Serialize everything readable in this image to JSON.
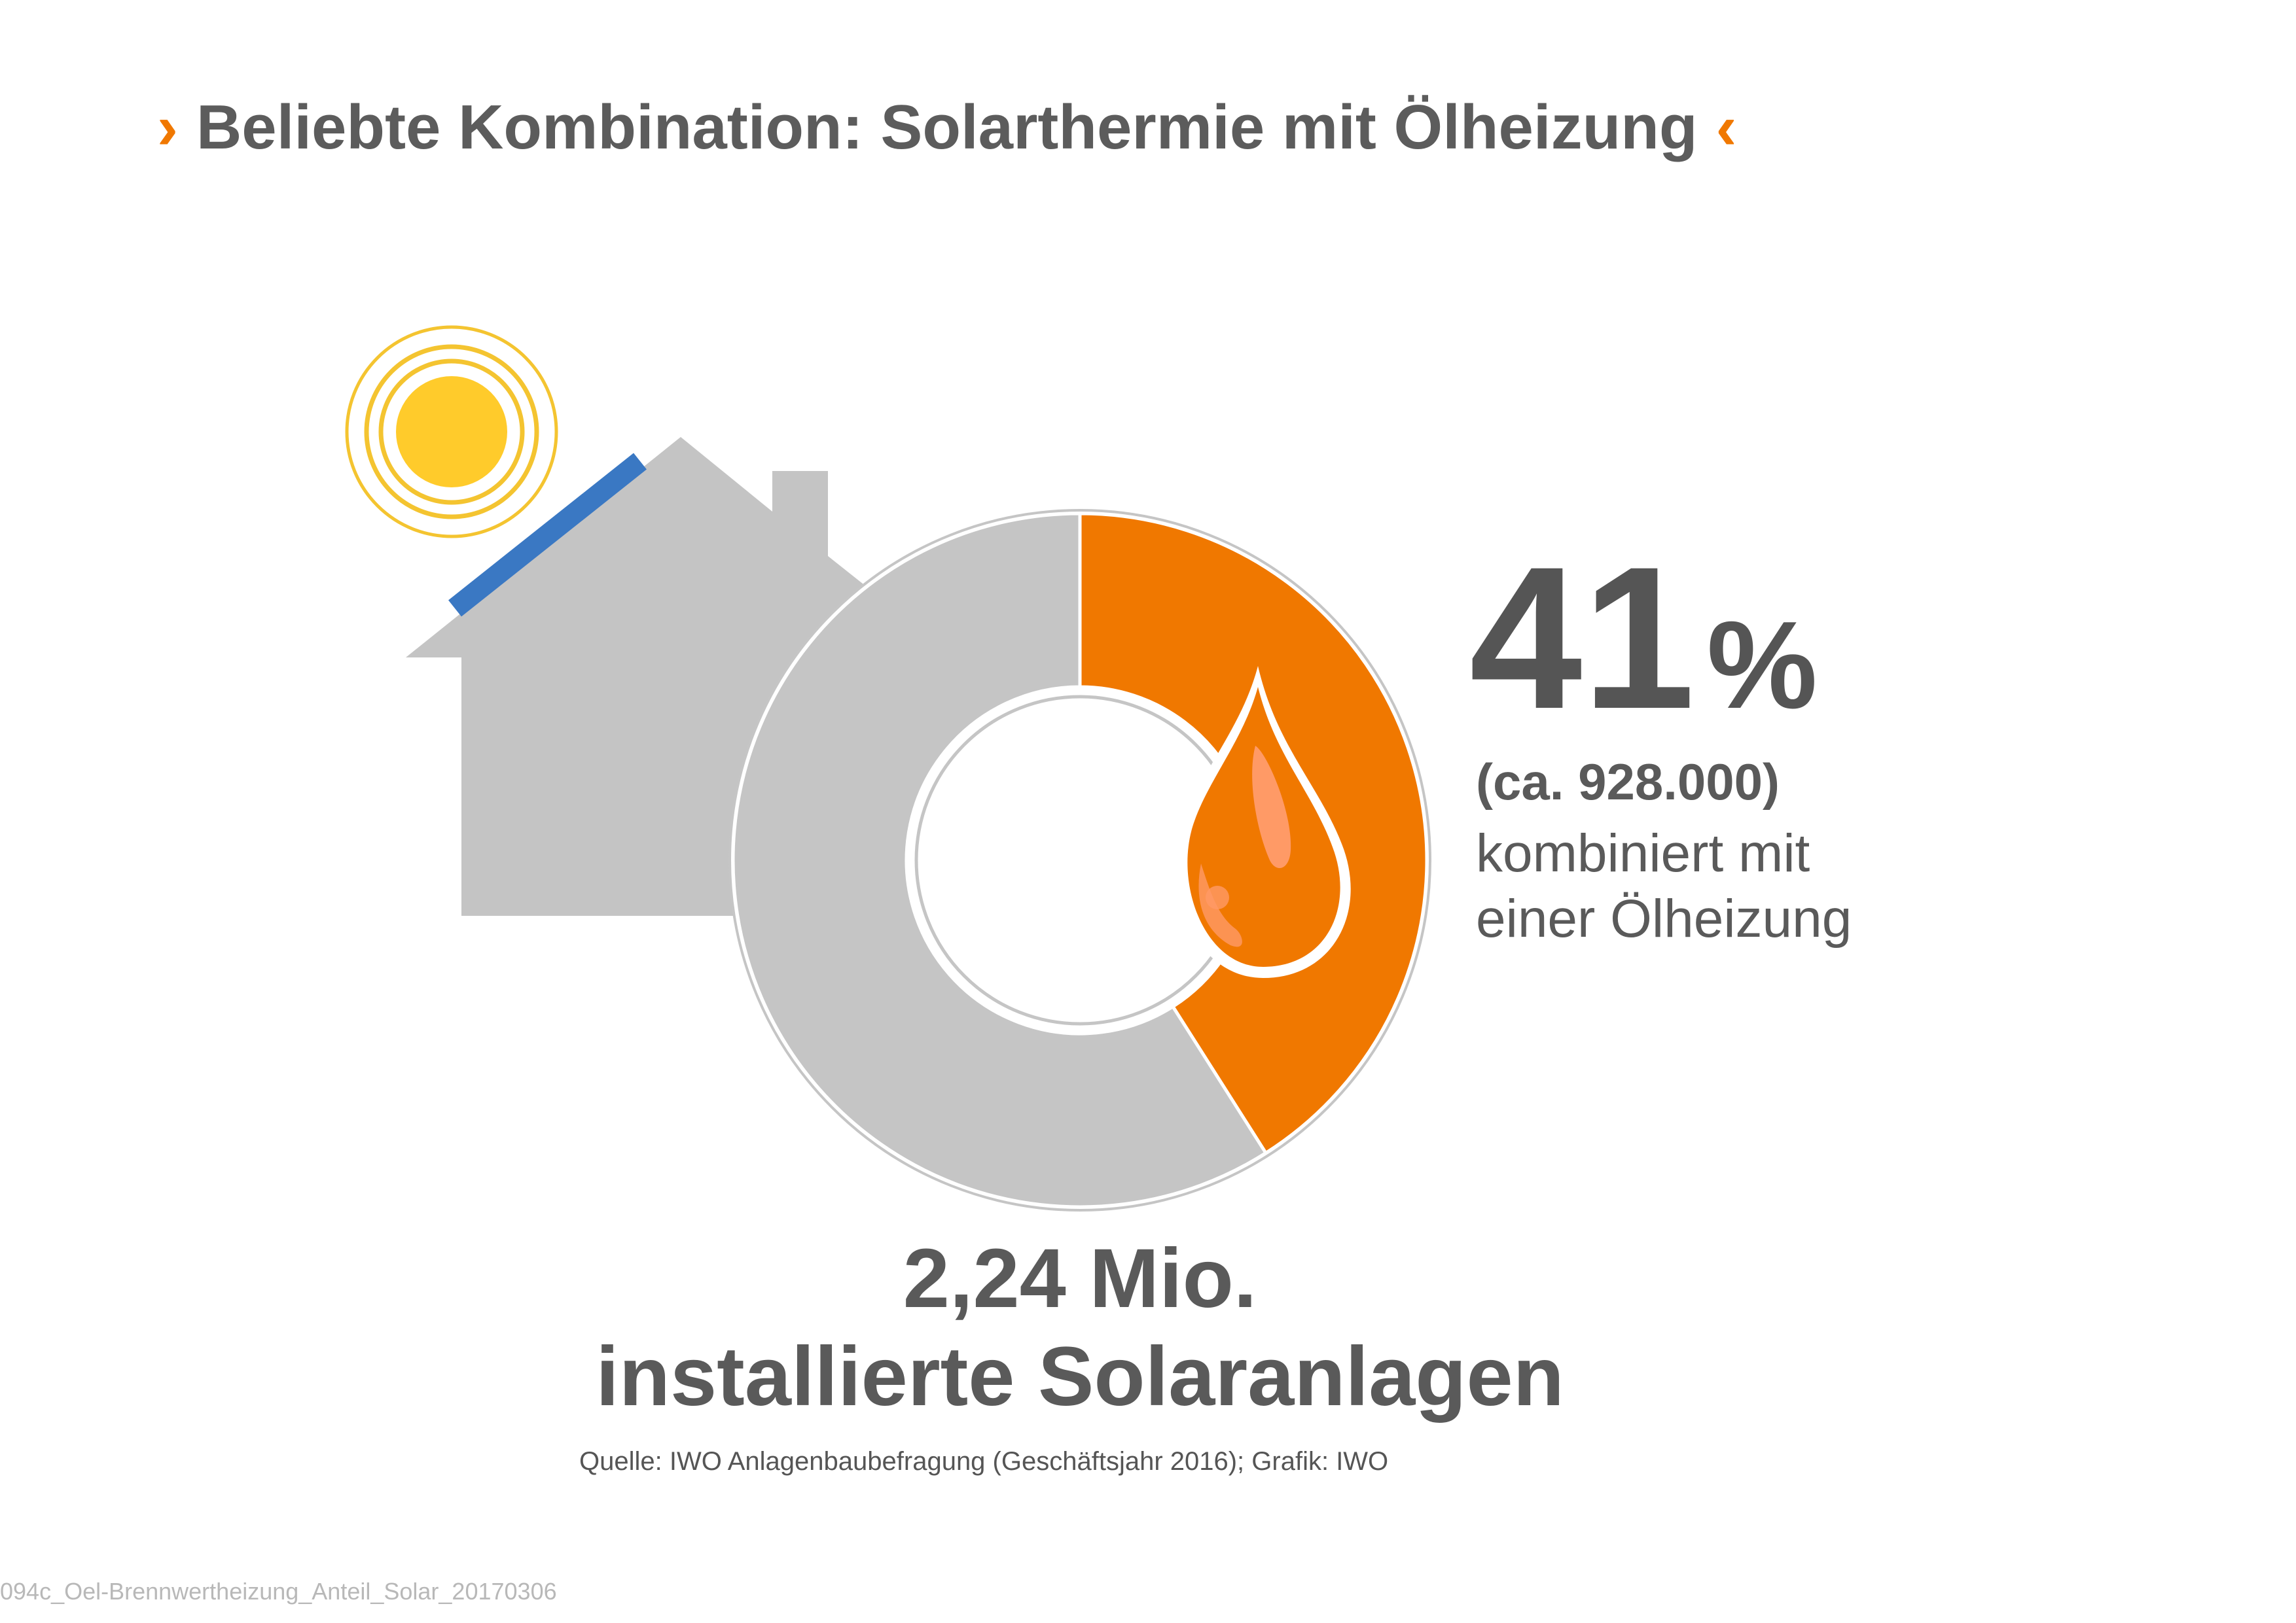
{
  "title": {
    "text": "Beliebte Kombination: Solarthermie mit Ölheizung",
    "chevron_left": "›",
    "chevron_right": "‹"
  },
  "chart_data": {
    "type": "pie",
    "style": "donut",
    "slices": [
      {
        "value": 41,
        "color": "#f07800"
      },
      {
        "value": 59,
        "color": "#c5c5c5"
      }
    ]
  },
  "highlight": {
    "percent_value": "41",
    "percent_symbol": "%",
    "count": "(ca. 928.000)",
    "description_lines": [
      "kombiniert mit",
      "einer Ölheizung"
    ]
  },
  "total": {
    "line1": "2,24 Mio.",
    "line2": "installierte Solaranlagen"
  },
  "source": "Quelle: IWO Anlagenbaubefragung (Geschäftsjahr 2016); Grafik: IWO",
  "footer_filename": "094c_Oel-Brennwertheizung_Anteil_Solar_20170306",
  "colors": {
    "accent": "#f07800",
    "grey_segment": "#c5c5c5",
    "house": "#c4c4c4",
    "sun": "#ffcb2b",
    "sun_ring": "#f4c430",
    "solar_panel": "#3a78c3",
    "text": "#5a5a5a"
  },
  "icons": [
    "sun-icon",
    "house-icon",
    "solar-panel-icon",
    "oil-drop-icon"
  ]
}
